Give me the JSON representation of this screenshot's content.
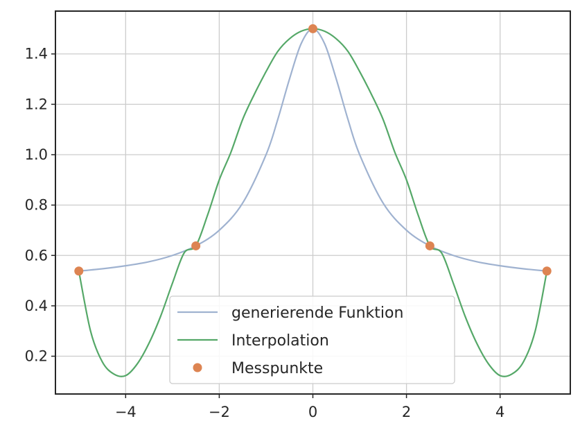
{
  "chart_data": {
    "type": "line",
    "title": "",
    "xlabel": "",
    "ylabel": "",
    "xlim": [
      -5.5,
      5.5
    ],
    "ylim": [
      0.05,
      1.57
    ],
    "grid": true,
    "legend_position": "bottom-center",
    "x_ticks": [
      -4,
      -2,
      0,
      2,
      4
    ],
    "x_tick_labels": [
      "−4",
      "−2",
      "0",
      "2",
      "4"
    ],
    "y_ticks": [
      0.2,
      0.4,
      0.6,
      0.8,
      1.0,
      1.2,
      1.4
    ],
    "y_tick_labels": [
      "0.2",
      "0.4",
      "0.6",
      "0.8",
      "1.0",
      "1.2",
      "1.4"
    ],
    "series": [
      {
        "name": "generierende Funktion",
        "kind": "line",
        "color": "#9fb2d0",
        "x": [
          -5,
          -4.5,
          -4,
          -3.5,
          -3,
          -2.5,
          -2,
          -1.5,
          -1,
          -0.75,
          -0.5,
          -0.25,
          0,
          0.25,
          0.5,
          0.75,
          1,
          1.5,
          2,
          2.5,
          3,
          3.5,
          4,
          4.5,
          5
        ],
        "y": [
          0.538,
          0.547,
          0.559,
          0.575,
          0.6,
          0.638,
          0.7,
          0.808,
          1.0,
          1.14,
          1.3,
          1.441,
          1.5,
          1.441,
          1.3,
          1.14,
          1.0,
          0.808,
          0.7,
          0.638,
          0.6,
          0.575,
          0.559,
          0.547,
          0.538
        ]
      },
      {
        "name": "Interpolation",
        "kind": "line",
        "color": "#55a868",
        "x": [
          -5,
          -4.75,
          -4.5,
          -4.25,
          -4,
          -3.75,
          -3.5,
          -3.25,
          -3,
          -2.75,
          -2.5,
          -2.25,
          -2,
          -1.75,
          -1.5,
          -1.25,
          -1,
          -0.75,
          -0.5,
          -0.25,
          0,
          0.25,
          0.5,
          0.75,
          1,
          1.25,
          1.5,
          1.75,
          2,
          2.25,
          2.5,
          2.75,
          3,
          3.25,
          3.5,
          3.75,
          4,
          4.25,
          4.5,
          4.75,
          5
        ],
        "y": [
          0.538,
          0.3,
          0.178,
          0.129,
          0.123,
          0.17,
          0.252,
          0.36,
          0.49,
          0.61,
          0.638,
          0.76,
          0.9,
          1.01,
          1.14,
          1.24,
          1.33,
          1.41,
          1.46,
          1.49,
          1.5,
          1.49,
          1.46,
          1.41,
          1.33,
          1.24,
          1.14,
          1.01,
          0.9,
          0.76,
          0.638,
          0.61,
          0.49,
          0.36,
          0.252,
          0.17,
          0.123,
          0.129,
          0.178,
          0.3,
          0.538
        ]
      },
      {
        "name": "Messpunkte",
        "kind": "scatter",
        "color": "#dd8452",
        "x": [
          -5,
          -2.5,
          0,
          2.5,
          5
        ],
        "y": [
          0.538,
          0.638,
          1.5,
          0.638,
          0.538
        ]
      }
    ]
  }
}
